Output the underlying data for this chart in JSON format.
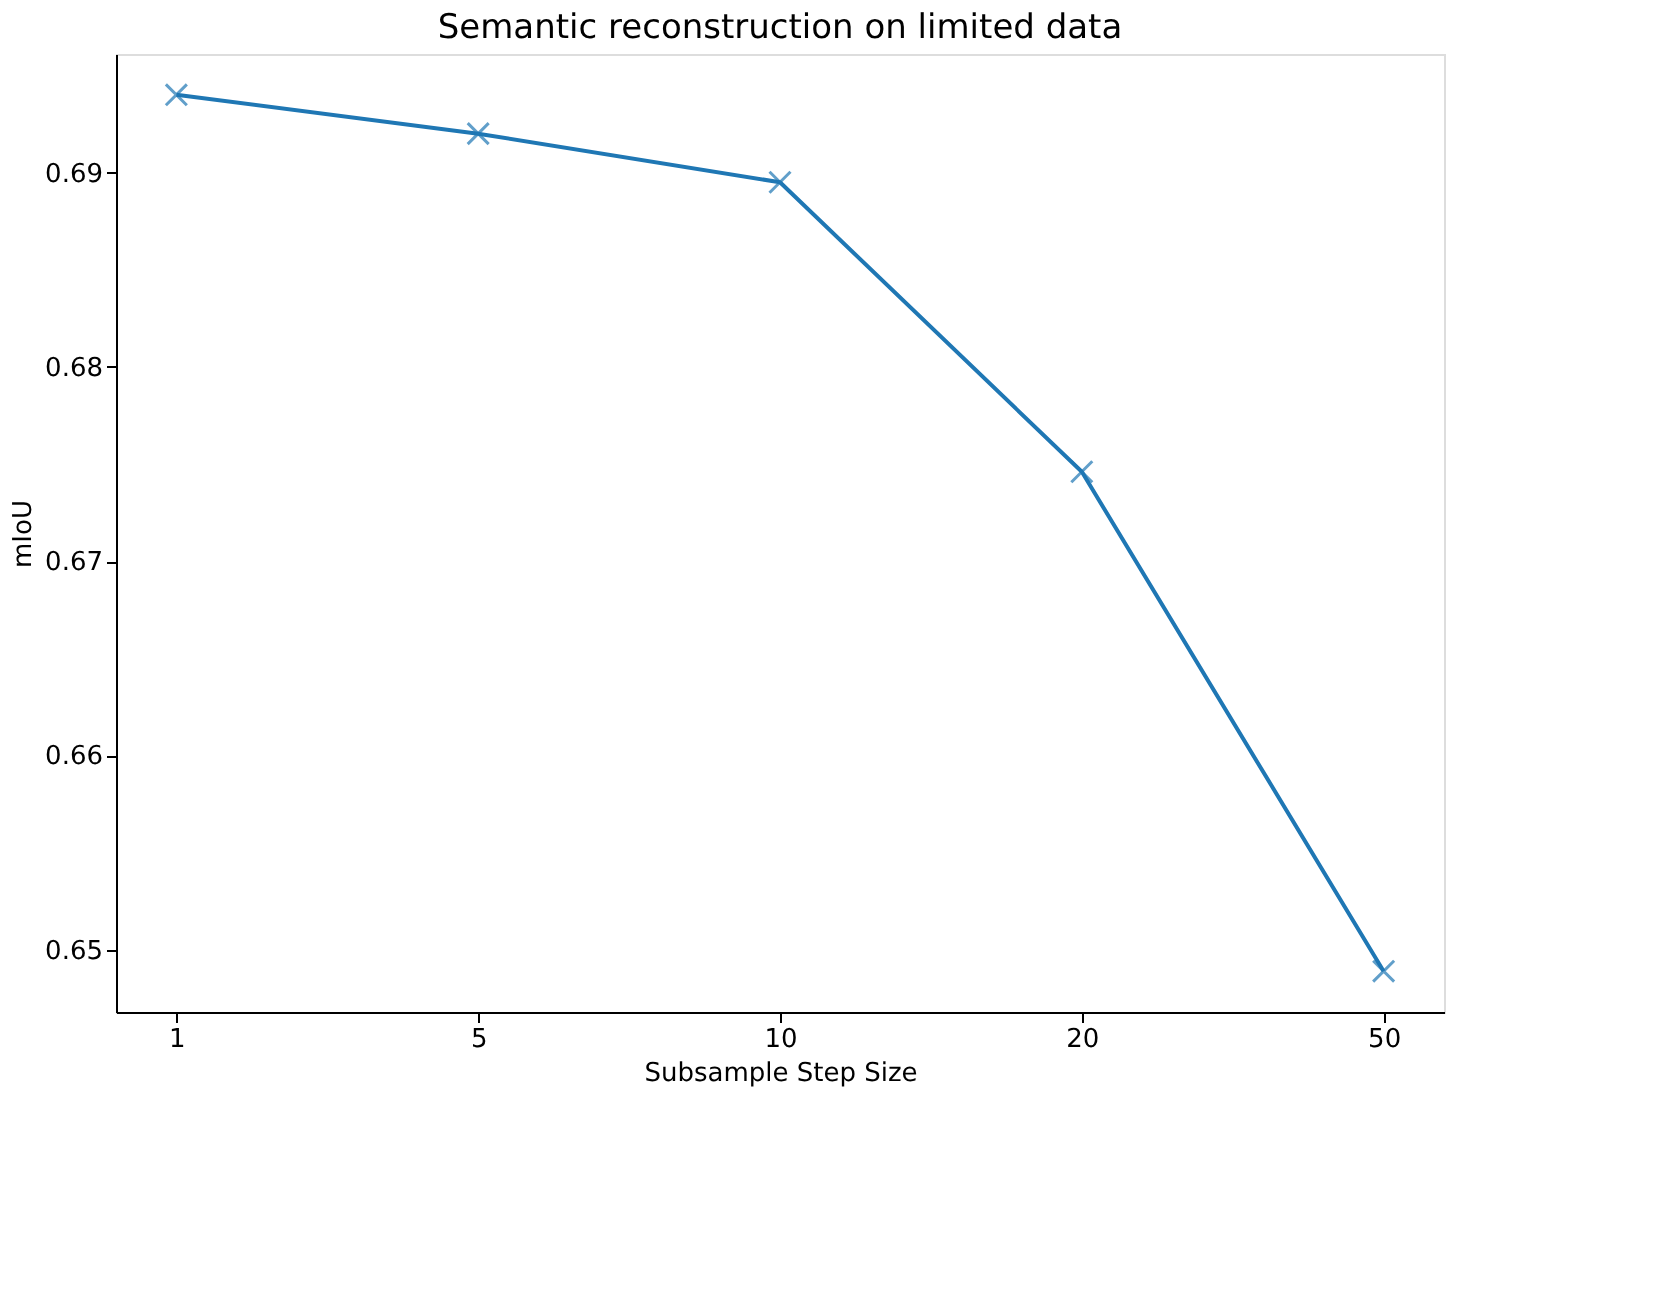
{
  "chart_data": {
    "type": "line",
    "title": "Semantic reconstruction on limited data",
    "xlabel": "Subsample Step Size",
    "ylabel": "mIoU",
    "categories": [
      "1",
      "5",
      "10",
      "20",
      "50"
    ],
    "series": [
      {
        "color": "#1f77b4",
        "values": [
          0.694,
          0.692,
          0.6895,
          0.6746,
          0.6489
        ]
      }
    ],
    "ylim": [
      0.6468,
      0.6961
    ],
    "yticks": [
      0.65,
      0.66,
      0.67,
      0.68,
      0.69
    ],
    "marker": "cross",
    "line_style": "solid",
    "grid": false
  }
}
